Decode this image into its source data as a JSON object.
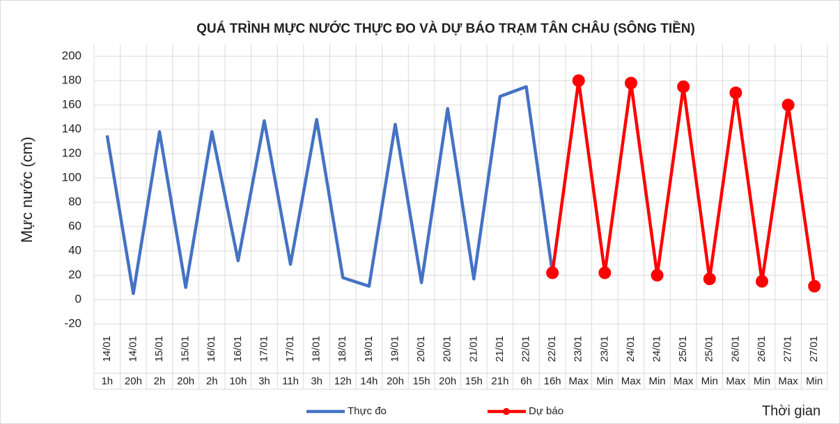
{
  "chart_data": {
    "type": "line",
    "title": "QUÁ TRÌNH MỰC NƯỚC THỰC ĐO VÀ DỰ BÁO TRẠM TÂN CHÂU (SÔNG TIỀN)",
    "y_label": "Mực nước (cm)",
    "x_label": "Thời gian",
    "categories": [
      [
        "14/01",
        "1h"
      ],
      [
        "14/01",
        "20h"
      ],
      [
        "15/01",
        "2h"
      ],
      [
        "15/01",
        "20h"
      ],
      [
        "16/01",
        "2h"
      ],
      [
        "16/01",
        "10h"
      ],
      [
        "17/01",
        "3h"
      ],
      [
        "17/01",
        "11h"
      ],
      [
        "18/01",
        "3h"
      ],
      [
        "18/01",
        "12h"
      ],
      [
        "19/01",
        "14h"
      ],
      [
        "19/01",
        "20h"
      ],
      [
        "20/01",
        "15h"
      ],
      [
        "20/01",
        "20h"
      ],
      [
        "21/01",
        "15h"
      ],
      [
        "21/01",
        "21h"
      ],
      [
        "22/01",
        "6h"
      ],
      [
        "22/01",
        "16h"
      ],
      [
        "23/01",
        "Max"
      ],
      [
        "23/01",
        "Min"
      ],
      [
        "24/01",
        "Max"
      ],
      [
        "24/01",
        "Min"
      ],
      [
        "25/01",
        "Max"
      ],
      [
        "25/01",
        "Min"
      ],
      [
        "26/01",
        "Max"
      ],
      [
        "26/01",
        "Min"
      ],
      [
        "27/01",
        "Max"
      ],
      [
        "27/01",
        "Min"
      ]
    ],
    "series": [
      {
        "name": "Thực đo",
        "color": "#4472c4",
        "marker": false,
        "values": [
          135,
          5,
          138,
          10,
          138,
          32,
          147,
          29,
          148,
          18,
          11,
          144,
          14,
          157,
          17,
          167,
          175,
          22,
          null,
          null,
          null,
          null,
          null,
          null,
          null,
          null,
          null,
          null
        ]
      },
      {
        "name": "Dự báo",
        "color": "#ff0000",
        "marker": true,
        "values": [
          null,
          null,
          null,
          null,
          null,
          null,
          null,
          null,
          null,
          null,
          null,
          null,
          null,
          null,
          null,
          null,
          null,
          22,
          180,
          22,
          178,
          20,
          175,
          17,
          170,
          15,
          160,
          11
        ]
      }
    ],
    "ylim": [
      -20,
      200
    ],
    "yticks": [
      -20,
      0,
      20,
      40,
      60,
      80,
      100,
      120,
      140,
      160,
      180,
      200
    ],
    "grid": true,
    "legend": "bottom"
  }
}
